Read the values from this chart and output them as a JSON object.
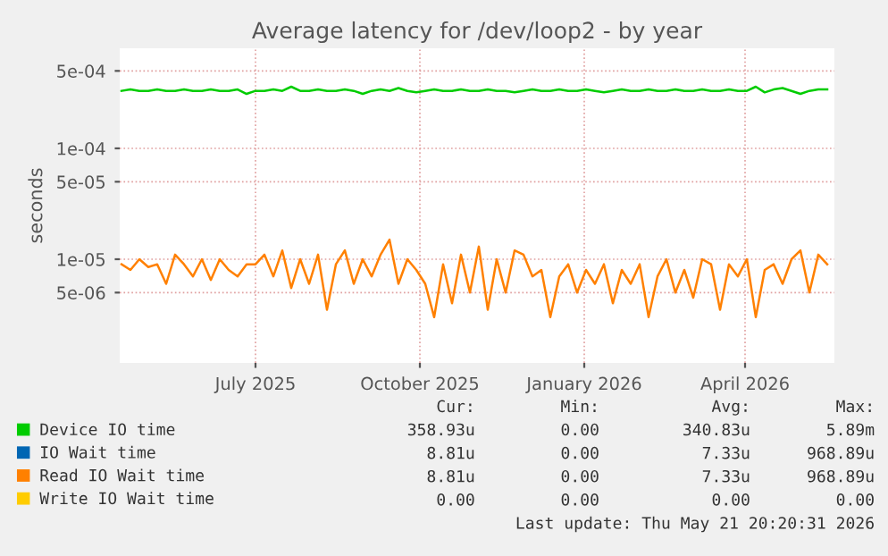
{
  "chart_data": {
    "type": "line",
    "title": "Average latency for /dev/loop2 - by year",
    "ylabel": "seconds",
    "log": true,
    "grid": true,
    "legend": "bottom",
    "marker": "none",
    "line_style": "solid",
    "ylim": [
      1.16e-06,
      0.0008
    ],
    "yticks": [
      {
        "value": 5e-06,
        "label": "5e-06"
      },
      {
        "value": 1e-05,
        "label": "1e-05"
      },
      {
        "value": 5e-05,
        "label": "5e-05"
      },
      {
        "value": 0.0001,
        "label": "1e-04"
      },
      {
        "value": 0.0005,
        "label": "5e-04"
      }
    ],
    "xlim": [
      "2025-04-16",
      "2026-05-21"
    ],
    "xticks": [
      {
        "value": "2025-07-01",
        "label": "July 2025"
      },
      {
        "value": "2025-10-01",
        "label": "October 2025"
      },
      {
        "value": "2026-01-01",
        "label": "January 2026"
      },
      {
        "value": "2026-04-01",
        "label": "April 2026"
      }
    ],
    "x": [
      "2025-04-17",
      "2025-04-22",
      "2025-04-27",
      "2025-05-02",
      "2025-05-07",
      "2025-05-12",
      "2025-05-17",
      "2025-05-22",
      "2025-05-27",
      "2025-06-01",
      "2025-06-06",
      "2025-06-11",
      "2025-06-16",
      "2025-06-21",
      "2025-06-26",
      "2025-07-01",
      "2025-07-06",
      "2025-07-11",
      "2025-07-16",
      "2025-07-21",
      "2025-07-26",
      "2025-07-31",
      "2025-08-05",
      "2025-08-10",
      "2025-08-15",
      "2025-08-20",
      "2025-08-25",
      "2025-08-30",
      "2025-09-04",
      "2025-09-09",
      "2025-09-14",
      "2025-09-19",
      "2025-09-24",
      "2025-09-29",
      "2025-10-04",
      "2025-10-09",
      "2025-10-14",
      "2025-10-19",
      "2025-10-24",
      "2025-10-29",
      "2025-11-03",
      "2025-11-08",
      "2025-11-13",
      "2025-11-18",
      "2025-11-23",
      "2025-11-28",
      "2025-12-03",
      "2025-12-08",
      "2025-12-13",
      "2025-12-18",
      "2025-12-23",
      "2025-12-28",
      "2026-01-02",
      "2026-01-07",
      "2026-01-12",
      "2026-01-17",
      "2026-01-22",
      "2026-01-27",
      "2026-02-01",
      "2026-02-06",
      "2026-02-11",
      "2026-02-16",
      "2026-02-21",
      "2026-02-26",
      "2026-03-03",
      "2026-03-08",
      "2026-03-13",
      "2026-03-18",
      "2026-03-23",
      "2026-03-28",
      "2026-04-02",
      "2026-04-07",
      "2026-04-12",
      "2026-04-17",
      "2026-04-22",
      "2026-04-27",
      "2026-05-02",
      "2026-05-07",
      "2026-05-12",
      "2026-05-17"
    ],
    "series": [
      {
        "name": "Device IO time",
        "color": "#00cc00",
        "values": [
          0.00033,
          0.00034,
          0.00033,
          0.00033,
          0.00034,
          0.00033,
          0.00033,
          0.00034,
          0.00033,
          0.00033,
          0.00034,
          0.00033,
          0.00033,
          0.00034,
          0.00031,
          0.00033,
          0.00033,
          0.00034,
          0.00033,
          0.00036,
          0.00033,
          0.00033,
          0.00034,
          0.00033,
          0.00033,
          0.00034,
          0.00033,
          0.00031,
          0.00033,
          0.00034,
          0.00033,
          0.00035,
          0.00033,
          0.00032,
          0.00033,
          0.00034,
          0.00033,
          0.00033,
          0.00034,
          0.00033,
          0.00033,
          0.00034,
          0.00033,
          0.00033,
          0.00032,
          0.00033,
          0.00034,
          0.00033,
          0.00033,
          0.00034,
          0.00033,
          0.00033,
          0.00034,
          0.00033,
          0.00032,
          0.00033,
          0.00034,
          0.00033,
          0.00033,
          0.00034,
          0.00033,
          0.00033,
          0.00034,
          0.00033,
          0.00033,
          0.00034,
          0.00033,
          0.00033,
          0.00034,
          0.00033,
          0.00033,
          0.00036,
          0.00032,
          0.00034,
          0.00035,
          0.00033,
          0.00031,
          0.00033,
          0.00034,
          0.00034
        ]
      },
      {
        "name": "IO Wait time",
        "color": "#0066b3",
        "values": [
          null,
          null,
          null,
          null,
          null,
          null,
          null,
          null,
          null,
          null,
          null,
          null,
          null,
          null,
          null,
          null,
          null,
          null,
          null,
          null,
          null,
          null,
          null,
          null,
          null,
          null,
          null,
          null,
          null,
          null,
          null,
          null,
          null,
          null,
          null,
          null,
          null,
          null,
          null,
          null,
          null,
          null,
          null,
          null,
          null,
          null,
          null,
          null,
          null,
          null,
          null,
          null,
          null,
          null,
          null,
          null,
          null,
          null,
          null,
          null,
          null,
          null,
          null,
          null,
          null,
          null,
          null,
          null,
          null,
          null,
          null,
          null,
          null,
          null,
          null,
          null,
          null,
          null,
          null,
          null
        ]
      },
      {
        "name": "Read IO Wait time",
        "color": "#ff8000",
        "values": [
          9e-06,
          8e-06,
          1e-05,
          8.5e-06,
          9e-06,
          6e-06,
          1.1e-05,
          9e-06,
          7e-06,
          1e-05,
          6.5e-06,
          1e-05,
          8e-06,
          7e-06,
          9e-06,
          9e-06,
          1.1e-05,
          7e-06,
          1.2e-05,
          5.5e-06,
          1e-05,
          6e-06,
          1.1e-05,
          3.5e-06,
          9e-06,
          1.2e-05,
          6e-06,
          1e-05,
          7e-06,
          1.1e-05,
          1.5e-05,
          6e-06,
          1e-05,
          8e-06,
          6e-06,
          3e-06,
          9e-06,
          4e-06,
          1.1e-05,
          5e-06,
          1.3e-05,
          3.5e-06,
          1e-05,
          5e-06,
          1.2e-05,
          1.1e-05,
          7e-06,
          8e-06,
          3e-06,
          7e-06,
          9e-06,
          5e-06,
          8e-06,
          6e-06,
          9e-06,
          4e-06,
          8e-06,
          6e-06,
          9e-06,
          3e-06,
          7e-06,
          1e-05,
          5e-06,
          8e-06,
          4.5e-06,
          1e-05,
          9e-06,
          3.5e-06,
          9e-06,
          7e-06,
          1e-05,
          3e-06,
          8e-06,
          9e-06,
          6e-06,
          1e-05,
          1.2e-05,
          5e-06,
          1.1e-05,
          9e-06
        ]
      },
      {
        "name": "Write IO Wait time",
        "color": "#ffcc00",
        "values": [
          null,
          null,
          null,
          null,
          null,
          null,
          null,
          null,
          null,
          null,
          null,
          null,
          null,
          null,
          null,
          null,
          null,
          null,
          null,
          null,
          null,
          null,
          null,
          null,
          null,
          null,
          null,
          null,
          null,
          null,
          null,
          null,
          null,
          null,
          null,
          null,
          null,
          null,
          null,
          null,
          null,
          null,
          null,
          null,
          null,
          null,
          null,
          null,
          null,
          null,
          null,
          null,
          null,
          null,
          null,
          null,
          null,
          null,
          null,
          null,
          null,
          null,
          null,
          null,
          null,
          null,
          null,
          null,
          null,
          null,
          null,
          null,
          null,
          null,
          null,
          null,
          null,
          null,
          null,
          null
        ]
      }
    ],
    "annotations": [
      "Cur:",
      "Min:",
      "Avg:",
      "Max:",
      "358.93u",
      "0.00",
      "340.83u",
      "5.89m",
      "8.81u",
      "0.00",
      "7.33u",
      "968.89u",
      "8.81u",
      "0.00",
      "7.33u",
      "968.89u",
      "0.00",
      "0.00",
      "0.00",
      "0.00",
      "Last update: Thu May 21 20:20:31 2026"
    ]
  }
}
